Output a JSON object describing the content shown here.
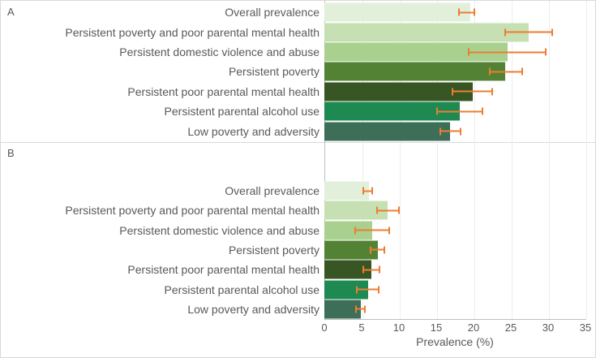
{
  "figure": {
    "kind": "two-panel horizontal bar chart with 95% CI error bars"
  },
  "chart_data": [
    {
      "type": "bar",
      "orientation": "horizontal",
      "panel_label": "A",
      "title": "",
      "categories": [
        "Overall prevalence",
        "Persistent poverty and poor parental mental health",
        "Persistent domestic violence and abuse",
        "Persistent poverty",
        "Persistent poor parental mental health",
        "Persistent parental alcohol use",
        "Low poverty and adversity"
      ],
      "series": [
        {
          "name": "Prevalence (%)",
          "values": [
            19.7,
            27.6,
            24.7,
            24.4,
            20.0,
            18.3,
            17.0
          ]
        }
      ],
      "error_bars": {
        "low": [
          18.1,
          24.3,
          19.4,
          22.2,
          17.2,
          15.1,
          15.5
        ],
        "high": [
          20.3,
          30.8,
          30.0,
          26.8,
          22.7,
          21.4,
          18.5
        ]
      },
      "xlabel": "",
      "xlim": [
        0,
        35
      ],
      "xticks": [
        0,
        5,
        10,
        15,
        20,
        25,
        30,
        35
      ],
      "grid": true,
      "legend": false,
      "bar_colors": [
        "#e2efda",
        "#c6e0b4",
        "#a9d08e",
        "#548235",
        "#375623",
        "#1e8a52",
        "#3c6e58"
      ],
      "error_bar_color": "#ed7d31"
    },
    {
      "type": "bar",
      "orientation": "horizontal",
      "panel_label": "B",
      "title": "",
      "categories": [
        "Overall prevalence",
        "Persistent poverty and poor parental mental health",
        "Persistent domestic violence and abuse",
        "Persistent poverty",
        "Persistent poor parental mental health",
        "Persistent parental alcohol use",
        "Low poverty and adversity"
      ],
      "series": [
        {
          "name": "Prevalence (%)",
          "values": [
            6.0,
            8.5,
            6.4,
            7.2,
            6.3,
            5.9,
            4.9
          ]
        }
      ],
      "error_bars": {
        "low": [
          5.1,
          7.0,
          4.1,
          6.1,
          5.1,
          4.3,
          4.2
        ],
        "high": [
          6.6,
          10.2,
          8.9,
          8.2,
          7.6,
          7.4,
          5.6
        ]
      },
      "xlabel": "Prevalence (%)",
      "xlim": [
        0,
        35
      ],
      "xticks": [
        0,
        5,
        10,
        15,
        20,
        25,
        30,
        35
      ],
      "grid": true,
      "legend": false,
      "bar_colors": [
        "#e2efda",
        "#c6e0b4",
        "#a9d08e",
        "#548235",
        "#375623",
        "#1e8a52",
        "#3c6e58"
      ],
      "error_bar_color": "#ed7d31"
    }
  ],
  "style": {
    "text_color": "#595959",
    "gridline_color": "#ededed",
    "axis_line_color": "#bfbfbf",
    "divider_color": "#d9d9d9",
    "background": "#ffffff"
  }
}
